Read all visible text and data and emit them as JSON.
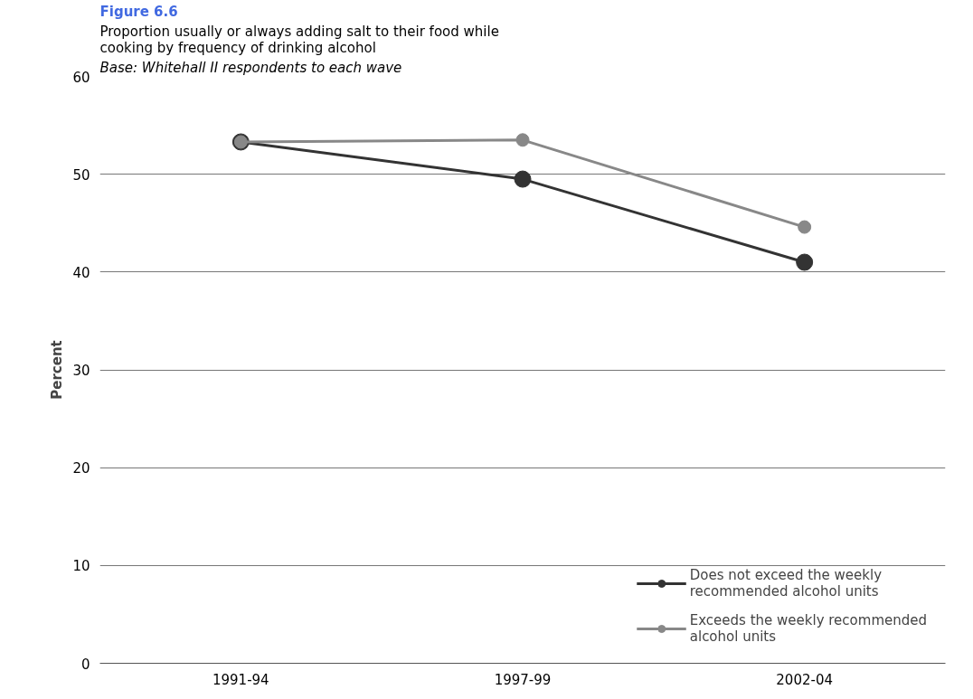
{
  "chart_data": {
    "type": "line",
    "title": "Figure 6.6",
    "subtitle": "Proportion usually or always adding salt to their food while cooking by frequency of drinking alcohol",
    "annotations": [
      "Base: Whitehall II respondents to each wave"
    ],
    "ylabel": "Percent",
    "categories": [
      "1991-94",
      "1997-99",
      "2002-04"
    ],
    "series": [
      {
        "name": "Does not exceed the weekly recommended alcohol units",
        "color": "#333333",
        "values": [
          53.3,
          49.5,
          41.0
        ]
      },
      {
        "name": "Exceeds the weekly recommended alcohol units",
        "color": "#888888",
        "values": [
          53.3,
          53.5,
          44.6
        ]
      }
    ],
    "ylim": [
      0,
      60
    ],
    "yticks": [
      0,
      10,
      20,
      30,
      40,
      50,
      60
    ],
    "grid": "y",
    "legend": "bottom right",
    "marker": "circle",
    "line_style": "solid"
  }
}
